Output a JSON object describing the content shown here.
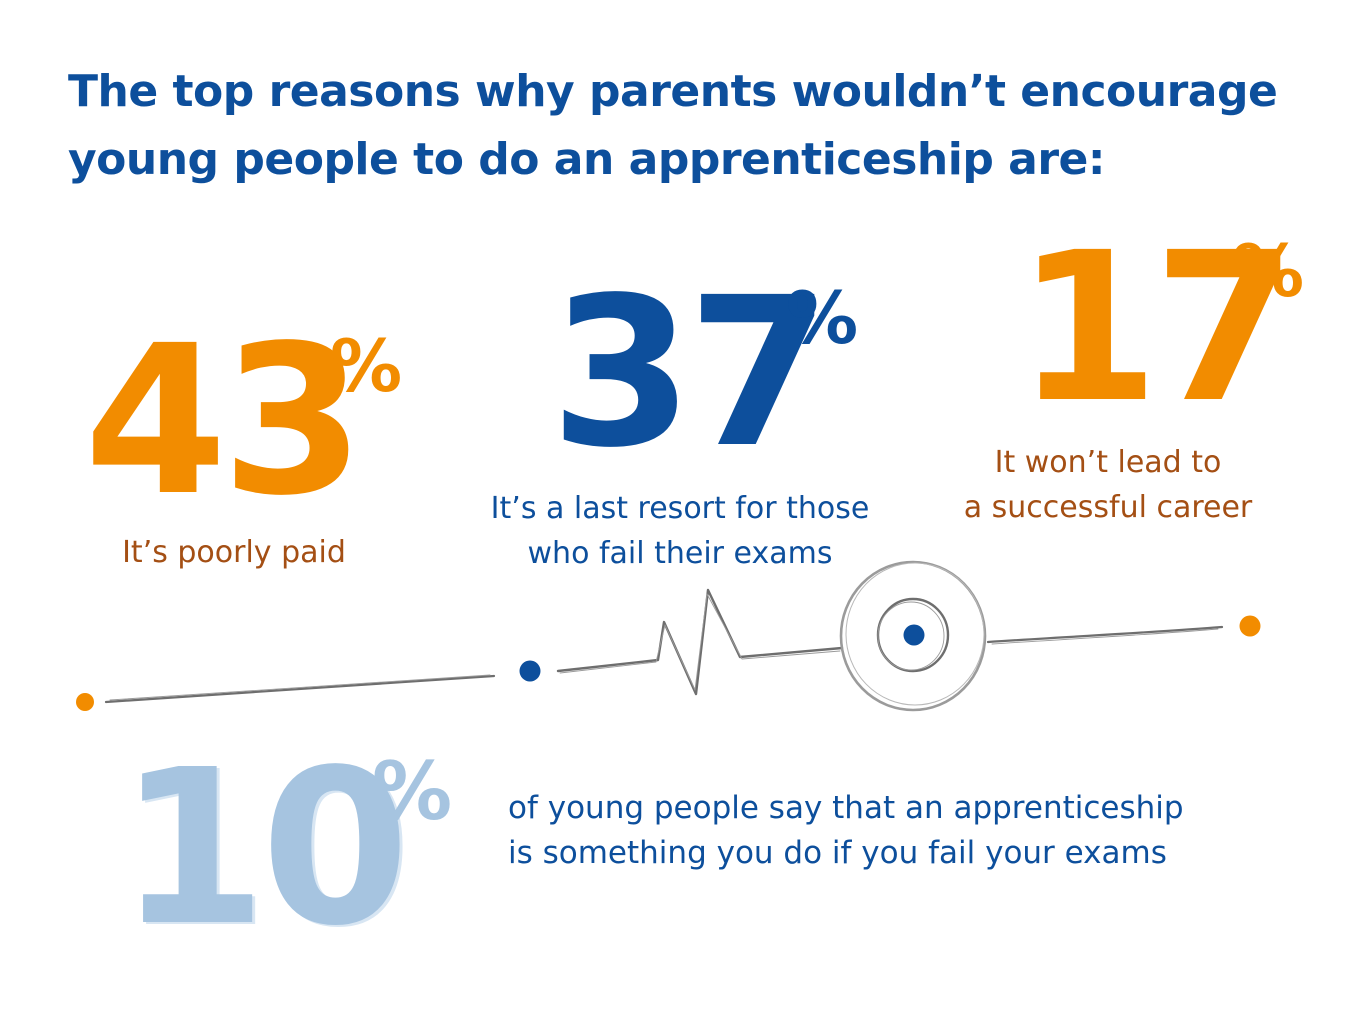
{
  "heading": {
    "line1": "The top reasons why parents wouldn’t encourage",
    "line2": "young people to do an apprenticeship are:"
  },
  "stats": [
    {
      "value": "43",
      "unit": "%",
      "caption": [
        "It’s poorly paid"
      ],
      "color": "#f28c00"
    },
    {
      "value": "37",
      "unit": "%",
      "caption": [
        "It’s a last resort for those",
        "who fail their exams"
      ],
      "color": "#0d4f9c"
    },
    {
      "value": "17",
      "unit": "%",
      "caption": [
        "It won’t lead to",
        "a successful career"
      ],
      "color": "#f28c00"
    }
  ],
  "highlight": {
    "value": "10",
    "unit": "%",
    "text": [
      "of young people say that an apprenticeship",
      "is something you do if you fail your exams"
    ],
    "color": "#a6c4e0"
  },
  "colors": {
    "primary_blue": "#0d4f9c",
    "orange": "#f28c00",
    "caption_brown": "#a44f14",
    "light_blue": "#a6c4e0",
    "line_gray": "#666666"
  }
}
